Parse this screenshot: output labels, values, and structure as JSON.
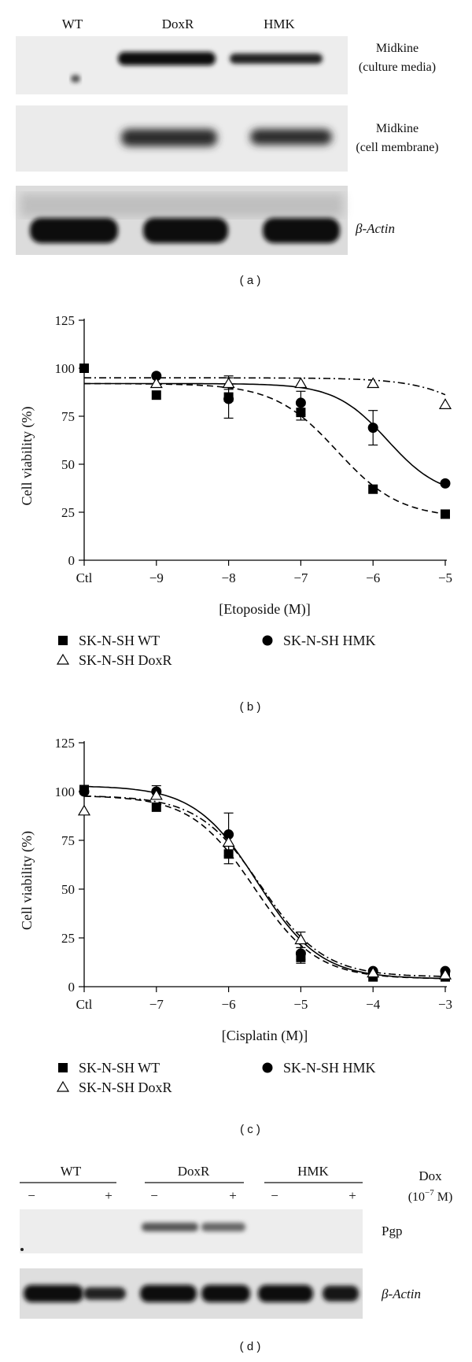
{
  "blot_a": {
    "lane_labels": [
      "WT",
      "DoxR",
      "HMK"
    ],
    "rows": [
      {
        "line1": "Midkine",
        "line2": "(culture media)"
      },
      {
        "line1": "Midkine",
        "line2": "(cell membrane)"
      },
      {
        "line1": "β-Actin",
        "line2": ""
      }
    ],
    "panel_label": "( a )"
  },
  "chart_data": [
    {
      "type": "scatter",
      "panel_label": "( b )",
      "xlabel": "[Etoposide (M)]",
      "ylabel": "Cell viability (%)",
      "ylim": [
        0,
        125
      ],
      "yticks": [
        0,
        25,
        50,
        75,
        100,
        125
      ],
      "xticks": [
        {
          "v": -10,
          "label": "Ctl"
        },
        {
          "v": -9,
          "label": "−9"
        },
        {
          "v": -8,
          "label": "−8"
        },
        {
          "v": -7,
          "label": "−7"
        },
        {
          "v": -6,
          "label": "−6"
        },
        {
          "v": -5,
          "label": "−5"
        }
      ],
      "xlim": [
        -10,
        -5
      ],
      "series": [
        {
          "name": "SK-N-SH WT",
          "marker": "square",
          "line": "dashed",
          "x": [
            -10,
            -9,
            -8,
            -7,
            -6,
            -5
          ],
          "y": [
            100,
            86,
            85,
            77,
            37,
            24
          ],
          "err": [
            0,
            0,
            11,
            4,
            0,
            0
          ],
          "fit": {
            "top": 92,
            "bottom": 22,
            "logec50": -6.5,
            "hill": 1
          }
        },
        {
          "name": "SK-N-SH HMK",
          "marker": "circle",
          "line": "solid",
          "x": [
            -9,
            -8,
            -7,
            -6,
            -5
          ],
          "y": [
            96,
            84,
            82,
            69,
            40
          ],
          "err": [
            0,
            0,
            6,
            9,
            0
          ],
          "fit": {
            "top": 92,
            "bottom": 33,
            "logec50": -5.8,
            "hill": 1.2
          }
        },
        {
          "name": "SK-N-SH DoxR",
          "marker": "triangle",
          "line": "dashdot",
          "x": [
            -9,
            -8,
            -7,
            -6,
            -5
          ],
          "y": [
            92,
            92,
            92,
            92,
            81
          ],
          "err": [
            0,
            3,
            0,
            0,
            0
          ],
          "fit": {
            "top": 95,
            "bottom": 0,
            "logec50": -3.9,
            "hill": 0.9
          }
        }
      ],
      "legend": [
        {
          "name": "SK-N-SH WT",
          "marker": "square"
        },
        {
          "name": "SK-N-SH HMK",
          "marker": "circle"
        },
        {
          "name": "SK-N-SH DoxR",
          "marker": "triangle"
        }
      ]
    },
    {
      "type": "scatter",
      "panel_label": "( c )",
      "xlabel": "[Cisplatin (M)]",
      "ylabel": "Cell viability (%)",
      "ylim": [
        0,
        125
      ],
      "yticks": [
        0,
        25,
        50,
        75,
        100,
        125
      ],
      "xticks": [
        {
          "v": -8,
          "label": "Ctl"
        },
        {
          "v": -7,
          "label": "−7"
        },
        {
          "v": -6,
          "label": "−6"
        },
        {
          "v": -5,
          "label": "−5"
        },
        {
          "v": -4,
          "label": "−4"
        },
        {
          "v": -3,
          "label": "−3"
        }
      ],
      "xlim": [
        -8,
        -3
      ],
      "series": [
        {
          "name": "SK-N-SH WT",
          "marker": "square",
          "line": "dashed",
          "x": [
            -8,
            -7,
            -6,
            -5,
            -4,
            -3
          ],
          "y": [
            101,
            92,
            68,
            15,
            5,
            5
          ],
          "err": [
            0,
            0,
            5,
            3,
            0,
            0
          ],
          "fit": {
            "top": 98,
            "bottom": 4,
            "logec50": -5.65,
            "hill": 1
          }
        },
        {
          "name": "SK-N-SH HMK",
          "marker": "circle",
          "line": "solid",
          "x": [
            -8,
            -7,
            -6,
            -5,
            -4,
            -3
          ],
          "y": [
            100,
            100,
            78,
            17,
            8,
            8
          ],
          "err": [
            0,
            3,
            11,
            3,
            0,
            0
          ],
          "fit": {
            "top": 103,
            "bottom": 4,
            "logec50": -5.6,
            "hill": 1
          }
        },
        {
          "name": "SK-N-SH DoxR",
          "marker": "triangle",
          "line": "dashdot",
          "x": [
            -8,
            -7,
            -6,
            -5,
            -4,
            -3
          ],
          "y": [
            90,
            98,
            74,
            24,
            7,
            6
          ],
          "err": [
            0,
            0,
            0,
            4,
            0,
            0
          ],
          "fit": {
            "top": 98,
            "bottom": 5,
            "logec50": -5.55,
            "hill": 1
          }
        }
      ],
      "legend": [
        {
          "name": "SK-N-SH WT",
          "marker": "square"
        },
        {
          "name": "SK-N-SH HMK",
          "marker": "circle"
        },
        {
          "name": "SK-N-SH DoxR",
          "marker": "triangle"
        }
      ]
    }
  ],
  "blot_d": {
    "groups": [
      "WT",
      "DoxR",
      "HMK"
    ],
    "signs": [
      "−",
      "+",
      "−",
      "+",
      "−",
      "+"
    ],
    "dox_label": "Dox",
    "dox_conc": "(10",
    "dox_exp": "−7",
    "dox_unit": " M)",
    "rows": [
      "Pgp",
      "β-Actin"
    ],
    "panel_label": "( d )"
  }
}
